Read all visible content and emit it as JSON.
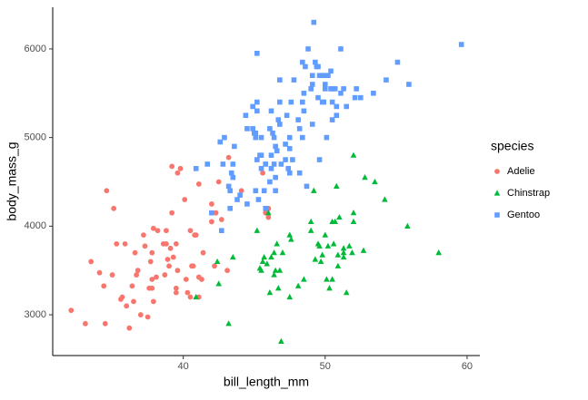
{
  "chart_data": {
    "type": "scatter",
    "xlabel": "bill_length_mm",
    "ylabel": "body_mass_g",
    "legend_title": "species",
    "legend": "right",
    "grid": false,
    "xlim": [
      30.8,
      60.9
    ],
    "ylim": [
      2540,
      6470
    ],
    "xticks": [
      40,
      50,
      60
    ],
    "yticks": [
      3000,
      4000,
      5000,
      6000
    ],
    "series": [
      {
        "name": "Adelie",
        "color": "#F8766D",
        "marker": "circle",
        "x": [
          39.1,
          39.5,
          40.3,
          36.7,
          39.3,
          38.9,
          39.2,
          34.1,
          42,
          37.8,
          37.8,
          41.1,
          38.6,
          34.6,
          36.6,
          38.7,
          42.5,
          34.4,
          46,
          37.8,
          37.7,
          35.9,
          38.2,
          38.8,
          35.3,
          40.6,
          40.5,
          37.9,
          40.5,
          39.5,
          37.2,
          39.5,
          40.9,
          36.4,
          39.2,
          38.8,
          42.2,
          37.6,
          39.8,
          36.5,
          40.8,
          36,
          44.1,
          37,
          39.6,
          41.1,
          37.5,
          42.3,
          39.6,
          40.1,
          35,
          42,
          34.5,
          41.4,
          39,
          35.7,
          41.3,
          32.1,
          33.1,
          35.1,
          45.8,
          33.5,
          43.2,
          36.2,
          37.3,
          40.2,
          45.6,
          42.7,
          35.6,
          41.1,
          38.1,
          43.1,
          40.7,
          36.8,
          37.9,
          46
        ],
        "y": [
          3750,
          3800,
          3250,
          3450,
          3650,
          3625,
          4675,
          3475,
          4250,
          3300,
          3700,
          3200,
          3800,
          4400,
          3700,
          3450,
          4500,
          3325,
          4200,
          3400,
          3600,
          3800,
          3950,
          3800,
          3800,
          3550,
          3200,
          3150,
          3950,
          3250,
          3900,
          3300,
          3900,
          3325,
          4150,
          3950,
          3550,
          3300,
          4650,
          3150,
          3900,
          3100,
          4400,
          3000,
          4600,
          3425,
          2975,
          4150,
          3500,
          4300,
          3450,
          4050,
          2900,
          3700,
          3550,
          3200,
          3400,
          3050,
          2900,
          4200,
          4150,
          3600,
          4775,
          2850,
          3775,
          3400,
          4600,
          4075,
          3175,
          4475,
          3425,
          3500,
          3550,
          3500,
          3975,
          4100
        ]
      },
      {
        "name": "Chinstrap",
        "color": "#00BA38",
        "marker": "triangle",
        "x": [
          46.5,
          50,
          51.3,
          45.4,
          52.7,
          45.2,
          46.1,
          51.3,
          46,
          51.3,
          46.6,
          51.7,
          47,
          52,
          45.9,
          50.5,
          50.3,
          58,
          46.4,
          49.2,
          42.4,
          48.5,
          43.2,
          50.6,
          46.7,
          52,
          50.5,
          49.5,
          46.4,
          52.8,
          40.9,
          54.2,
          42.5,
          51,
          49.7,
          47.5,
          47.6,
          52,
          46.9,
          53.5,
          49,
          46.2,
          50.9,
          45.5,
          50.9,
          50.8,
          50.1,
          49.8,
          51.5,
          55.8,
          49.6,
          48.1,
          49,
          45.6,
          50.2,
          51.9,
          46.8,
          45.7,
          43.5,
          49.3,
          50.7,
          47.5
        ],
        "y": [
          3500,
          3900,
          3650,
          3525,
          3725,
          3950,
          3250,
          3750,
          4150,
          3700,
          3800,
          3775,
          3700,
          4050,
          3575,
          4050,
          3300,
          3700,
          3450,
          4400,
          3600,
          3400,
          2900,
          3800,
          3300,
          4150,
          3400,
          3800,
          3700,
          4550,
          3200,
          4300,
          3350,
          4100,
          3600,
          3900,
          3850,
          4800,
          2700,
          4500,
          3950,
          3650,
          3550,
          3500,
          3675,
          4450,
          3400,
          3675,
          3250,
          4000,
          3775,
          3325,
          4050,
          3600,
          3775,
          3700,
          3500,
          3650,
          3650,
          3625,
          4050,
          3200
        ]
      },
      {
        "name": "Gentoo",
        "color": "#619CFF",
        "marker": "square",
        "x": [
          46.1,
          50,
          48.7,
          47.6,
          46.5,
          45.4,
          46.7,
          43.3,
          46.8,
          40.9,
          49,
          45.5,
          48.4,
          45.8,
          49.3,
          42,
          49.2,
          46.2,
          50.2,
          45.1,
          46.5,
          46.3,
          42.9,
          46.1,
          47.8,
          48.2,
          50,
          47.3,
          42.8,
          45.1,
          59.6,
          49.1,
          48.4,
          42.6,
          44.4,
          44,
          42.7,
          49.6,
          45.3,
          49.6,
          50.5,
          43.6,
          50.5,
          44.9,
          45.2,
          46.6,
          48.5,
          45.1,
          50.1,
          46.5,
          45,
          43.8,
          45.5,
          43.2,
          50.4,
          46.2,
          45.7,
          54.3,
          45.8,
          49.8,
          49.5,
          43.5,
          50.7,
          47.7,
          46.4,
          48.2,
          46.4,
          48.6,
          47.5,
          51.1,
          45.2,
          45.2,
          49.1,
          52.5,
          47.4,
          50,
          44.9,
          50.8,
          43.4,
          51.3,
          47.5,
          52.1,
          47.5,
          52.2,
          45.5,
          49.5,
          44.5,
          50.8,
          49.4,
          46.9,
          48.4,
          51.1,
          48.5,
          55.9,
          47.2,
          49.1,
          46.8,
          41.7,
          53.4,
          43.3,
          48.1,
          50.5,
          49.8,
          43.5,
          51.5,
          46.2,
          55.1,
          44.5,
          48.8,
          47.2,
          46.8,
          50.4,
          45.2,
          49.9
        ],
        "y": [
          4500,
          5700,
          4450,
          5400,
          4550,
          4800,
          5200,
          4400,
          5150,
          4650,
          5550,
          4650,
          5850,
          4200,
          5850,
          4150,
          6300,
          4800,
          5700,
          5000,
          4400,
          5050,
          5000,
          5100,
          5650,
          4600,
          5550,
          5250,
          4700,
          5050,
          6050,
          5150,
          5400,
          4950,
          5250,
          4350,
          3950,
          5700,
          4300,
          4750,
          5550,
          4900,
          5400,
          5100,
          5300,
          4850,
          5300,
          4400,
          5000,
          4900,
          5050,
          4300,
          5000,
          4450,
          5550,
          5300,
          4400,
          5650,
          4700,
          5700,
          5800,
          4700,
          5550,
          4750,
          5000,
          5100,
          4700,
          5800,
          4600,
          6000,
          4750,
          5950,
          5700,
          5450,
          4650,
          5600,
          5350,
          5350,
          4600,
          5550,
          4875,
          5450,
          5000,
          5550,
          4800,
          5450,
          4250,
          5250,
          5800,
          4700,
          5000,
          5500,
          5500,
          5600,
          4750,
          5600,
          5400,
          4700,
          5500,
          4200,
          5200,
          5200,
          5400,
          4550,
          5350,
          4650,
          5850,
          5100,
          6000,
          4925,
          5650,
          5750,
          5400,
          5400
        ]
      }
    ]
  }
}
